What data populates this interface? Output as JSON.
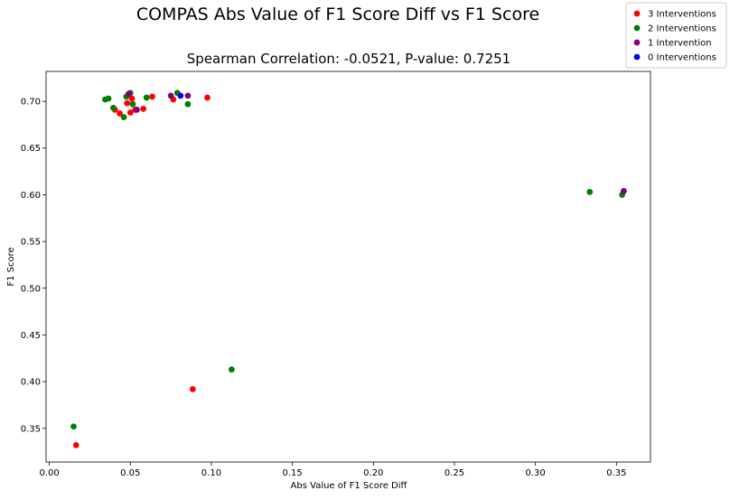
{
  "chart_data": {
    "type": "scatter",
    "suptitle": "COMPAS Abs Value of F1 Score Diff vs F1 Score",
    "title": "Spearman Correlation: -0.0521, P-value: 0.7251",
    "xlabel": "Abs Value of F1 Score Diff",
    "ylabel": "F1 Score",
    "xlim": [
      -0.002,
      0.371
    ],
    "ylim": [
      0.314,
      0.732
    ],
    "xticks": [
      0.0,
      0.05,
      0.1,
      0.15,
      0.2,
      0.25,
      0.3,
      0.35
    ],
    "xtick_labels": [
      "0.00",
      "0.05",
      "0.10",
      "0.15",
      "0.20",
      "0.25",
      "0.30",
      "0.35"
    ],
    "yticks": [
      0.35,
      0.4,
      0.45,
      0.5,
      0.55,
      0.6,
      0.65,
      0.7
    ],
    "ytick_labels": [
      "0.35",
      "0.40",
      "0.45",
      "0.50",
      "0.55",
      "0.60",
      "0.65",
      "0.70"
    ],
    "grid": false,
    "legend_position": "top-right",
    "series": [
      {
        "name": "3 Interventions",
        "color": "#ff0000",
        "points": [
          {
            "x": 0.0165,
            "y": 0.332
          },
          {
            "x": 0.0885,
            "y": 0.392
          },
          {
            "x": 0.0405,
            "y": 0.691
          },
          {
            "x": 0.0435,
            "y": 0.687
          },
          {
            "x": 0.048,
            "y": 0.698
          },
          {
            "x": 0.05,
            "y": 0.688
          },
          {
            "x": 0.051,
            "y": 0.703
          },
          {
            "x": 0.053,
            "y": 0.691
          },
          {
            "x": 0.058,
            "y": 0.692
          },
          {
            "x": 0.0635,
            "y": 0.705
          },
          {
            "x": 0.0765,
            "y": 0.702
          },
          {
            "x": 0.0975,
            "y": 0.704
          }
        ]
      },
      {
        "name": "2 Interventions",
        "color": "#008000",
        "points": [
          {
            "x": 0.015,
            "y": 0.352
          },
          {
            "x": 0.1125,
            "y": 0.413
          },
          {
            "x": 0.0345,
            "y": 0.702
          },
          {
            "x": 0.0365,
            "y": 0.703
          },
          {
            "x": 0.0395,
            "y": 0.693
          },
          {
            "x": 0.046,
            "y": 0.683
          },
          {
            "x": 0.0475,
            "y": 0.705
          },
          {
            "x": 0.05,
            "y": 0.709
          },
          {
            "x": 0.0515,
            "y": 0.697
          },
          {
            "x": 0.06,
            "y": 0.704
          },
          {
            "x": 0.079,
            "y": 0.709
          },
          {
            "x": 0.0855,
            "y": 0.697
          },
          {
            "x": 0.3335,
            "y": 0.603
          },
          {
            "x": 0.3535,
            "y": 0.6
          }
        ]
      },
      {
        "name": "1 Intervention",
        "color": "#800080",
        "points": [
          {
            "x": 0.049,
            "y": 0.708
          },
          {
            "x": 0.054,
            "y": 0.691
          },
          {
            "x": 0.075,
            "y": 0.706
          },
          {
            "x": 0.0855,
            "y": 0.706
          },
          {
            "x": 0.3545,
            "y": 0.604
          }
        ]
      },
      {
        "name": "0 Interventions",
        "color": "#0000ff",
        "points": [
          {
            "x": 0.081,
            "y": 0.706
          }
        ]
      }
    ]
  }
}
